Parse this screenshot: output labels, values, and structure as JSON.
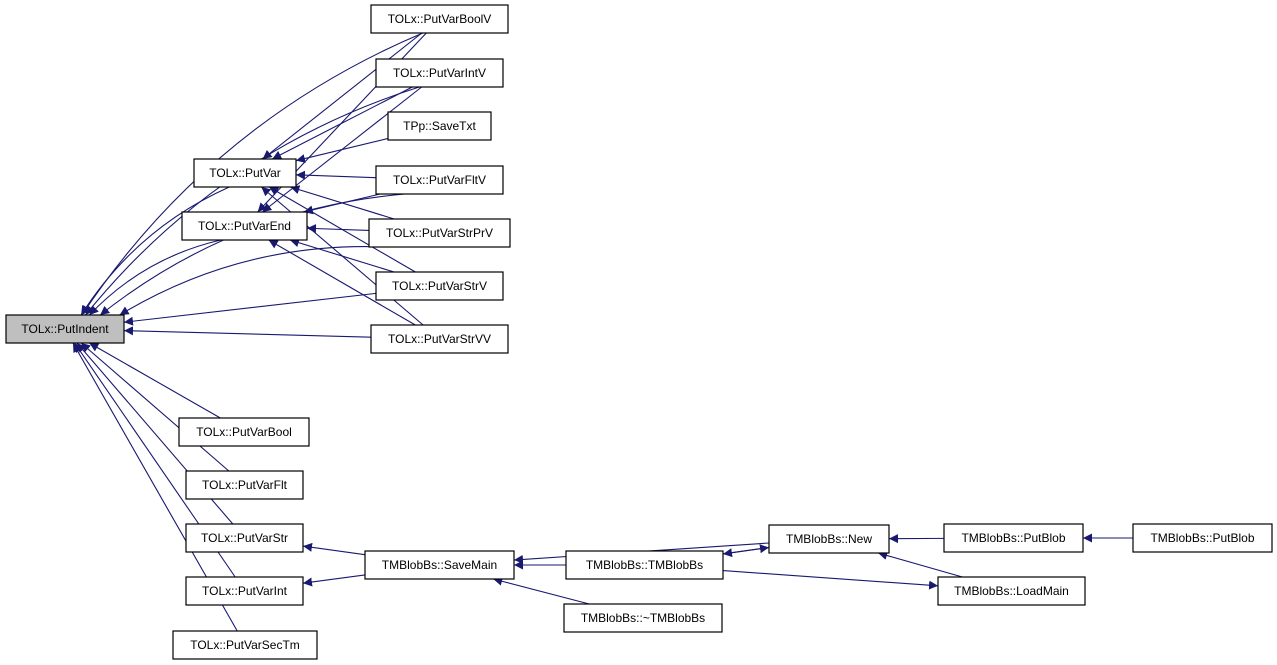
{
  "colors": {
    "edge": "#191970",
    "focus_fill": "#bfbfbf",
    "node_fill": "#ffffff",
    "node_border": "#000000"
  },
  "nodes": {
    "PutIndent": "TOLx::PutIndent",
    "PutVarBoolV": "TOLx::PutVarBoolV",
    "PutVarIntV": "TOLx::PutVarIntV",
    "SaveTxt": "TPp::SaveTxt",
    "PutVarFltV": "TOLx::PutVarFltV",
    "PutVarStrPrV": "TOLx::PutVarStrPrV",
    "PutVarStrV": "TOLx::PutVarStrV",
    "PutVarStrVV": "TOLx::PutVarStrVV",
    "PutVar": "TOLx::PutVar",
    "PutVarEnd": "TOLx::PutVarEnd",
    "PutVarBool": "TOLx::PutVarBool",
    "PutVarFlt": "TOLx::PutVarFlt",
    "PutVarStr": "TOLx::PutVarStr",
    "PutVarInt": "TOLx::PutVarInt",
    "PutVarSecTm": "TOLx::PutVarSecTm",
    "SaveMain": "TMBlobBs::SaveMain",
    "Ctor": "TMBlobBs::TMBlobBs",
    "Dtor": "TMBlobBs::~TMBlobBs",
    "New": "TMBlobBs::New",
    "PutBlob1": "TMBlobBs::PutBlob",
    "PutBlob2": "TMBlobBs::PutBlob",
    "LoadMain": "TMBlobBs::LoadMain"
  },
  "focus_node": "PutIndent",
  "edges": [
    [
      "PutVarBoolV",
      "PutIndent"
    ],
    [
      "PutVarIntV",
      "PutIndent"
    ],
    [
      "PutVarFltV",
      "PutIndent"
    ],
    [
      "PutVarStrPrV",
      "PutIndent"
    ],
    [
      "PutVarStrV",
      "PutIndent"
    ],
    [
      "PutVarStrVV",
      "PutIndent"
    ],
    [
      "PutVar",
      "PutIndent"
    ],
    [
      "PutVarEnd",
      "PutIndent"
    ],
    [
      "PutVarBool",
      "PutIndent"
    ],
    [
      "PutVarFlt",
      "PutIndent"
    ],
    [
      "PutVarStr",
      "PutIndent"
    ],
    [
      "PutVarInt",
      "PutIndent"
    ],
    [
      "PutVarSecTm",
      "PutIndent"
    ],
    [
      "PutVarBoolV",
      "PutVar"
    ],
    [
      "PutVarIntV",
      "PutVar"
    ],
    [
      "SaveTxt",
      "PutVar"
    ],
    [
      "PutVarFltV",
      "PutVar"
    ],
    [
      "PutVarStrPrV",
      "PutVar"
    ],
    [
      "PutVarStrV",
      "PutVar"
    ],
    [
      "PutVarStrVV",
      "PutVar"
    ],
    [
      "PutVarBoolV",
      "PutVarEnd"
    ],
    [
      "PutVarIntV",
      "PutVarEnd"
    ],
    [
      "PutVarFltV",
      "PutVarEnd"
    ],
    [
      "PutVarStrPrV",
      "PutVarEnd"
    ],
    [
      "PutVarStrV",
      "PutVarEnd"
    ],
    [
      "PutVarStrVV",
      "PutVarEnd"
    ],
    [
      "SaveMain",
      "PutVarStr"
    ],
    [
      "SaveMain",
      "PutVarInt"
    ],
    [
      "New",
      "SaveMain"
    ],
    [
      "Ctor",
      "SaveMain"
    ],
    [
      "Dtor",
      "SaveMain"
    ],
    [
      "New",
      "Ctor"
    ],
    [
      "Ctor",
      "New"
    ],
    [
      "PutBlob1",
      "New"
    ],
    [
      "LoadMain",
      "New"
    ],
    [
      "Ctor",
      "LoadMain"
    ],
    [
      "PutBlob2",
      "PutBlob1"
    ]
  ]
}
